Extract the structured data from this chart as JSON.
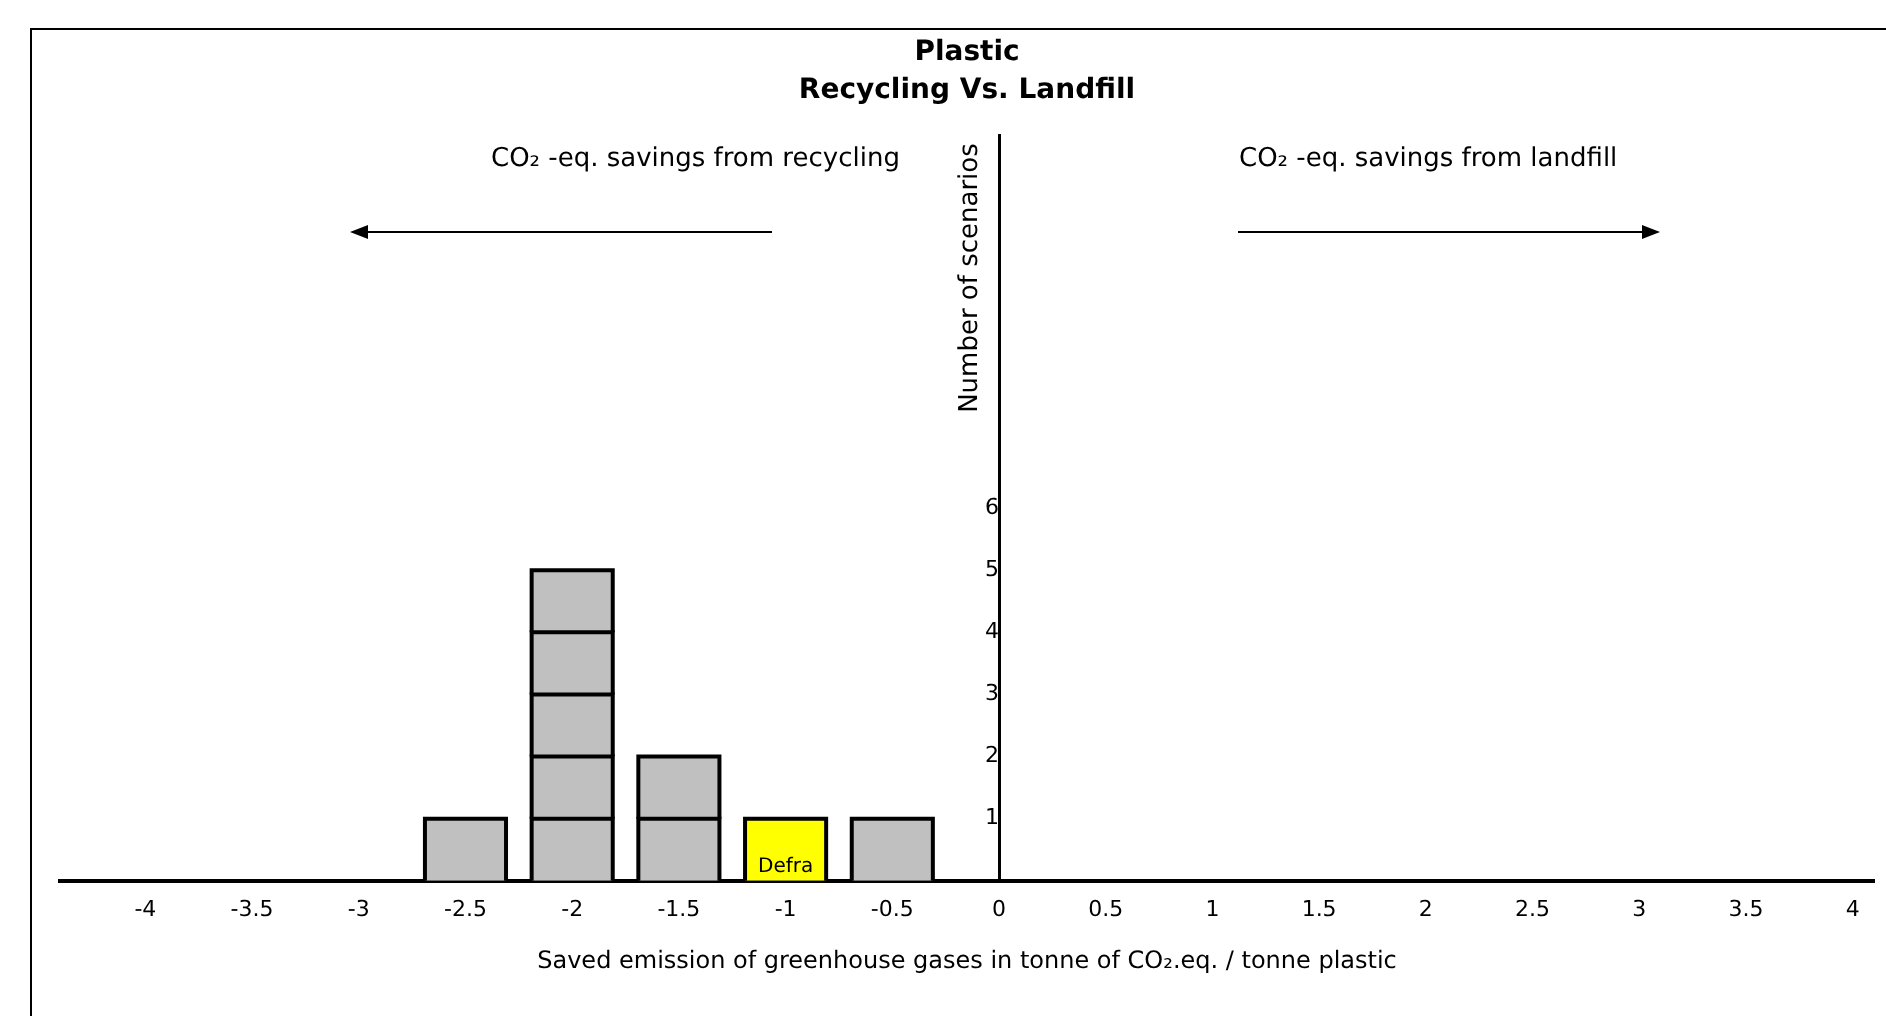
{
  "chart_data": {
    "type": "bar",
    "title": "Plastic",
    "subtitle": "Recycling Vs. Landfill",
    "xlabel": "Saved emission of greenhouse gases in tonne of CO₂.eq. / tonne plastic",
    "ylabel": "Number of scenarios",
    "x": [
      -2.5,
      -2,
      -1.5,
      -1,
      -0.5
    ],
    "stacked": true,
    "series": [
      {
        "colors": [
          "#c0c0c0",
          "#c0c0c0",
          "#c0c0c0",
          "#ffff00",
          "#c0c0c0"
        ],
        "values": [
          1,
          1,
          1,
          1,
          1
        ],
        "value_labels": [
          null,
          null,
          null,
          "Defra",
          null
        ]
      },
      {
        "color": "#c0c0c0",
        "values": [
          null,
          1,
          1,
          null,
          null
        ]
      },
      {
        "color": "#c0c0c0",
        "values": [
          null,
          1,
          null,
          null,
          null
        ]
      },
      {
        "color": "#c0c0c0",
        "values": [
          null,
          1,
          null,
          null,
          null
        ]
      },
      {
        "color": "#c0c0c0",
        "values": [
          null,
          1,
          null,
          null,
          null
        ]
      }
    ],
    "xlim": [
      -4.4,
      4.1
    ],
    "xticks": [
      -4,
      -3.5,
      -3,
      -2.5,
      -2,
      -1.5,
      -1,
      -0.5,
      0,
      0.5,
      1,
      1.5,
      2,
      2.5,
      3,
      3.5,
      4
    ],
    "ylim": [
      0,
      12
    ],
    "yticks": [
      1,
      2,
      3,
      4,
      5,
      6
    ],
    "annotations": [
      "CO₂ -eq. savings from recycling",
      "CO₂ -eq. savings from landfill"
    ],
    "legend": false,
    "grid": false
  }
}
